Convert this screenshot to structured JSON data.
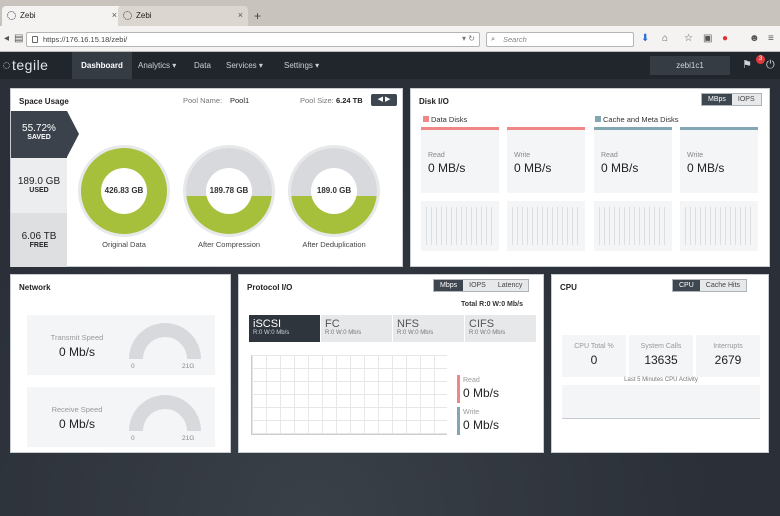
{
  "browser": {
    "tabs": [
      {
        "title": "Zebi",
        "close": "×"
      },
      {
        "title": "Zebi",
        "close": "×"
      }
    ],
    "new_tab": "+",
    "url": "https://176.16.15.18/zebi/",
    "search_placeholder": "Search"
  },
  "app": {
    "logo": "tegile",
    "menu": [
      {
        "label": "Dashboard"
      },
      {
        "label": "Analytics ▾"
      },
      {
        "label": "Data"
      },
      {
        "label": "Services ▾"
      },
      {
        "label": "Settings ▾"
      }
    ],
    "user": "zebi1c1",
    "notifications": "3"
  },
  "space_usage": {
    "title": "Space Usage",
    "pool_name_label": "Pool Name:",
    "pool_name": "Pool1",
    "pool_size_label": "Pool Size:",
    "pool_size": "6.24 TB",
    "saved_value": "55.72%",
    "saved_label": "SAVED",
    "used_value": "189.0 GB",
    "used_label": "USED",
    "free_value": "6.06 TB",
    "free_label": "FREE",
    "donuts": [
      {
        "value": "426.83 GB",
        "caption": "Original Data",
        "fill": 1.0
      },
      {
        "value": "189.78 GB",
        "caption": "After Compression",
        "fill": 0.44
      },
      {
        "value": "189.0 GB",
        "caption": "After Deduplication",
        "fill": 0.44
      }
    ],
    "donut_color": "#a6c03b"
  },
  "disk_io": {
    "title": "Disk I/O",
    "toggle": [
      "MBps",
      "IOPS"
    ],
    "groups": [
      "Data Disks",
      "Cache and Meta Disks"
    ],
    "columns": [
      {
        "label": "Read",
        "value": "0 MB/s"
      },
      {
        "label": "Write",
        "value": "0 MB/s"
      },
      {
        "label": "Read",
        "value": "0 MB/s"
      },
      {
        "label": "Write",
        "value": "0 MB/s"
      }
    ],
    "data_color": "#ef8787",
    "cache_color": "#82a7b3"
  },
  "network": {
    "title": "Network",
    "transmit_label": "Transmit Speed",
    "transmit_value": "0 Mb/s",
    "receive_label": "Receive Speed",
    "receive_value": "0 Mb/s",
    "gauge_min": "0",
    "gauge_max": "21G"
  },
  "protocol_io": {
    "title": "Protocol I/O",
    "toggle": [
      "Mbps",
      "IOPS",
      "Latency"
    ],
    "total": "Total R:0 W:0 Mb/s",
    "protocols": [
      {
        "name": "iSCSI",
        "sub": "R:0 W:0 Mb/s"
      },
      {
        "name": "FC",
        "sub": "R:0 W:0 Mb/s"
      },
      {
        "name": "NFS",
        "sub": "R:0 W:0 Mb/s"
      },
      {
        "name": "CIFS",
        "sub": "R:0 W:0 Mb/s"
      }
    ],
    "read_label": "Read",
    "read_value": "0 Mb/s",
    "write_label": "Write",
    "write_value": "0 Mb/s"
  },
  "cpu": {
    "title": "CPU",
    "toggle": [
      "CPU",
      "Cache Hits"
    ],
    "stats": [
      {
        "label": "CPU Total %",
        "value": "0"
      },
      {
        "label": "System Calls",
        "value": "13635"
      },
      {
        "label": "Interrupts",
        "value": "2679"
      }
    ],
    "note": "Last 5 Minutes CPU Activity"
  }
}
